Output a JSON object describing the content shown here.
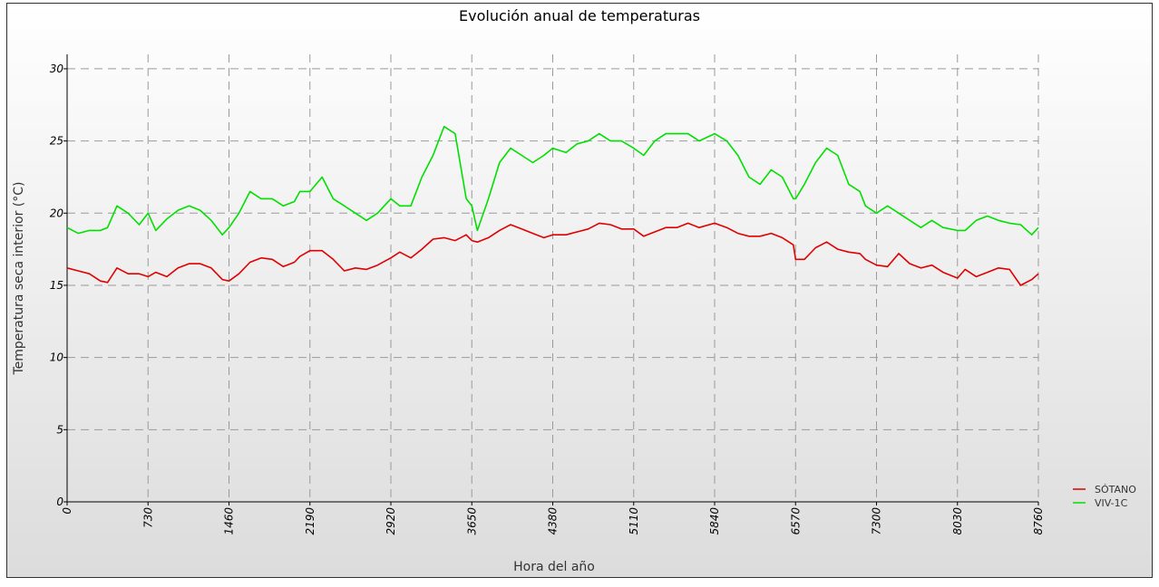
{
  "chart_data": {
    "type": "line",
    "title": "Evolución anual de temperaturas",
    "xlabel": "Hora del año",
    "ylabel": "Temperatura seca interior (°C)",
    "xlim": [
      0,
      8760
    ],
    "ylim": [
      0,
      31
    ],
    "x_ticks": [
      0,
      730,
      1460,
      2190,
      2920,
      3650,
      4380,
      5110,
      5840,
      6570,
      7300,
      8030,
      8760
    ],
    "y_ticks": [
      0,
      5,
      10,
      15,
      20,
      25,
      30
    ],
    "grid": true,
    "legend_position": "bottom-right",
    "series": [
      {
        "name": "SÓTANO",
        "color": "#e00000",
        "x": [
          0,
          100,
          200,
          300,
          365,
          450,
          550,
          650,
          730,
          800,
          900,
          1000,
          1100,
          1200,
          1300,
          1400,
          1460,
          1550,
          1650,
          1750,
          1850,
          1950,
          2050,
          2100,
          2190,
          2300,
          2400,
          2500,
          2600,
          2700,
          2800,
          2920,
          3000,
          3100,
          3200,
          3300,
          3400,
          3500,
          3600,
          3650,
          3700,
          3800,
          3900,
          4000,
          4100,
          4200,
          4300,
          4380,
          4500,
          4600,
          4700,
          4800,
          4900,
          5000,
          5110,
          5200,
          5300,
          5400,
          5500,
          5600,
          5700,
          5840,
          5950,
          6050,
          6150,
          6250,
          6350,
          6450,
          6550,
          6570,
          6650,
          6750,
          6850,
          6950,
          7050,
          7150,
          7200,
          7300,
          7400,
          7500,
          7600,
          7700,
          7800,
          7900,
          8030,
          8100,
          8200,
          8300,
          8400,
          8500,
          8600,
          8700,
          8760
        ],
        "y": [
          16.2,
          16.0,
          15.8,
          15.3,
          15.2,
          16.2,
          15.8,
          15.8,
          15.6,
          15.9,
          15.6,
          16.2,
          16.5,
          16.5,
          16.2,
          15.4,
          15.3,
          15.8,
          16.6,
          16.9,
          16.8,
          16.3,
          16.6,
          17.0,
          17.4,
          17.4,
          16.8,
          16.0,
          16.2,
          16.1,
          16.4,
          16.9,
          17.3,
          16.9,
          17.5,
          18.2,
          18.3,
          18.1,
          18.5,
          18.1,
          18.0,
          18.3,
          18.8,
          19.2,
          18.9,
          18.6,
          18.3,
          18.5,
          18.5,
          18.7,
          18.9,
          19.3,
          19.2,
          18.9,
          18.9,
          18.4,
          18.7,
          19.0,
          19.0,
          19.3,
          19.0,
          19.3,
          19.0,
          18.6,
          18.4,
          18.4,
          18.6,
          18.3,
          17.8,
          16.8,
          16.8,
          17.6,
          18.0,
          17.5,
          17.3,
          17.2,
          16.8,
          16.4,
          16.3,
          17.2,
          16.5,
          16.2,
          16.4,
          15.9,
          15.5,
          16.1,
          15.6,
          15.9,
          16.2,
          16.1,
          15.0,
          15.4,
          15.8
        ]
      },
      {
        "name": "VIV-1C",
        "color": "#00e000",
        "x": [
          0,
          100,
          200,
          300,
          365,
          450,
          550,
          650,
          730,
          800,
          900,
          1000,
          1100,
          1200,
          1300,
          1400,
          1460,
          1550,
          1650,
          1750,
          1850,
          1950,
          2050,
          2100,
          2190,
          2300,
          2400,
          2500,
          2600,
          2700,
          2800,
          2920,
          3000,
          3100,
          3200,
          3300,
          3400,
          3500,
          3600,
          3650,
          3700,
          3800,
          3900,
          4000,
          4100,
          4200,
          4300,
          4380,
          4500,
          4600,
          4700,
          4800,
          4900,
          5000,
          5110,
          5200,
          5300,
          5400,
          5500,
          5600,
          5700,
          5840,
          5950,
          6050,
          6150,
          6250,
          6350,
          6450,
          6550,
          6570,
          6650,
          6750,
          6850,
          6950,
          7050,
          7150,
          7200,
          7300,
          7400,
          7500,
          7600,
          7700,
          7800,
          7900,
          8030,
          8100,
          8200,
          8300,
          8400,
          8500,
          8600,
          8700,
          8760
        ],
        "y": [
          19.0,
          18.6,
          18.8,
          18.8,
          19.0,
          20.5,
          20.0,
          19.2,
          20.0,
          18.8,
          19.6,
          20.2,
          20.5,
          20.2,
          19.5,
          18.5,
          19.0,
          20.0,
          21.5,
          21.0,
          21.0,
          20.5,
          20.8,
          21.5,
          21.5,
          22.5,
          21.0,
          20.5,
          20.0,
          19.5,
          20.0,
          21.0,
          20.5,
          20.5,
          22.5,
          24.0,
          26.0,
          25.5,
          21.0,
          20.5,
          18.8,
          21.0,
          23.5,
          24.5,
          24.0,
          23.5,
          24.0,
          24.5,
          24.2,
          24.8,
          25.0,
          25.5,
          25.0,
          25.0,
          24.5,
          24.0,
          25.0,
          25.5,
          25.5,
          25.5,
          25.0,
          25.5,
          25.0,
          24.0,
          22.5,
          22.0,
          23.0,
          22.5,
          21.0,
          21.0,
          22.0,
          23.5,
          24.5,
          24.0,
          22.0,
          21.5,
          20.5,
          20.0,
          20.5,
          20.0,
          19.5,
          19.0,
          19.5,
          19.0,
          18.8,
          18.8,
          19.5,
          19.8,
          19.5,
          19.3,
          19.2,
          18.5,
          19.0
        ]
      }
    ]
  }
}
